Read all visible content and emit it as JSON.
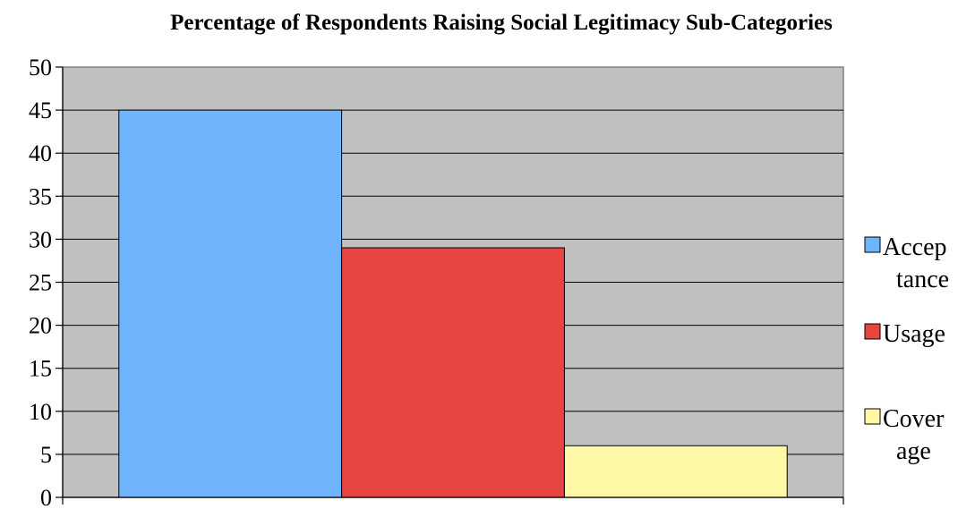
{
  "chart_data": {
    "type": "bar",
    "title": "Percentage of Respondents Raising Social Legitimacy Sub-Categories",
    "xlabel": "",
    "ylabel": "",
    "ylim": [
      0,
      50
    ],
    "yticks": [
      0,
      5,
      10,
      15,
      20,
      25,
      30,
      35,
      40,
      45,
      50
    ],
    "grid": true,
    "plot_background": "#c0c0c0",
    "legend_position": "right",
    "series": [
      {
        "name": "Acceptance",
        "legend_lines": [
          "Accep",
          "tance"
        ],
        "value": 45,
        "color": "#6fb4fc"
      },
      {
        "name": "Usage",
        "legend_lines": [
          "Usage"
        ],
        "value": 29,
        "color": "#e64541"
      },
      {
        "name": "Coverage",
        "legend_lines": [
          "Cover",
          "age"
        ],
        "value": 6,
        "color": "#fdf7a6"
      }
    ]
  }
}
